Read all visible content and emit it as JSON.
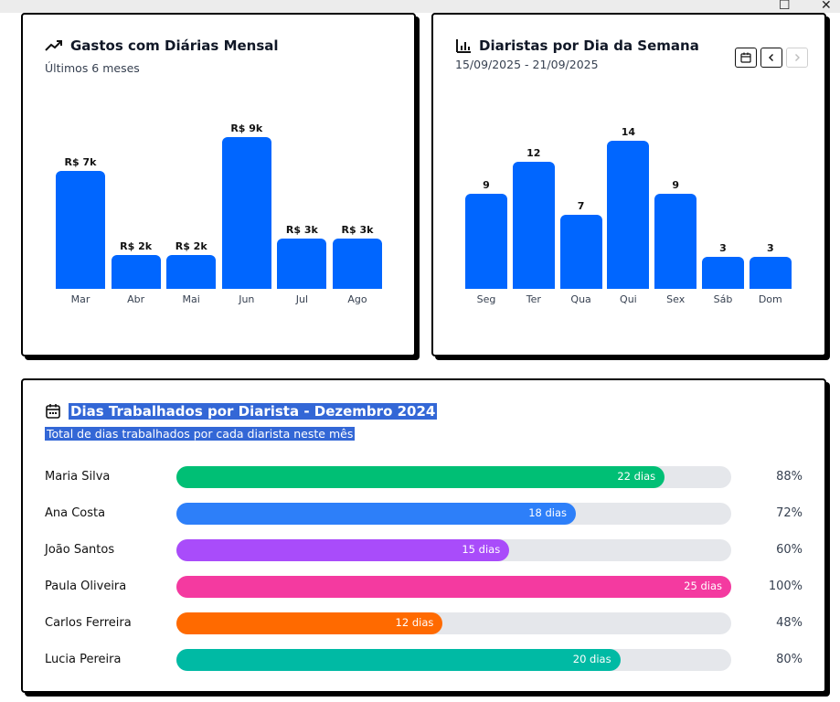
{
  "window": {
    "minimize_glyph": "☐",
    "close_glyph": "✕"
  },
  "monthly_card": {
    "title": "Gastos com Diárias Mensal",
    "subtitle": "Últimos 6 meses",
    "icon": "trending-up-icon"
  },
  "weekday_card": {
    "title": "Diaristas por Dia da Semana",
    "subtitle": "15/09/2025 - 21/09/2025",
    "icon": "bar-chart-icon"
  },
  "days_card": {
    "title": "Dias Trabalhados por Diarista - Dezembro 2024",
    "subtitle": "Total de dias trabalhados por cada diarista neste mês",
    "icon": "calendar-icon",
    "rows": [
      {
        "name": "Maria Silva",
        "days": 22,
        "days_label": "22 dias",
        "percent": 88,
        "percent_label": "88%",
        "color": "#00bf75"
      },
      {
        "name": "Ana Costa",
        "days": 18,
        "days_label": "18 dias",
        "percent": 72,
        "percent_label": "72%",
        "color": "#2d7ff9"
      },
      {
        "name": "João Santos",
        "days": 15,
        "days_label": "15 dias",
        "percent": 60,
        "percent_label": "60%",
        "color": "#a94cfa"
      },
      {
        "name": "Paula Oliveira",
        "days": 25,
        "days_label": "25 dias",
        "percent": 100,
        "percent_label": "100%",
        "color": "#f43aa0"
      },
      {
        "name": "Carlos Ferreira",
        "days": 12,
        "days_label": "12 dias",
        "percent": 48,
        "percent_label": "48%",
        "color": "#ff6a00"
      },
      {
        "name": "Lucia Pereira",
        "days": 20,
        "days_label": "20 dias",
        "percent": 80,
        "percent_label": "80%",
        "color": "#00baa4"
      }
    ]
  },
  "chart_data": [
    {
      "type": "bar",
      "categories": [
        "Mar",
        "Abr",
        "Mai",
        "Jun",
        "Jul",
        "Ago"
      ],
      "values": [
        7,
        2,
        2,
        9,
        3,
        3
      ],
      "value_labels": [
        "R$ 7k",
        "R$ 2k",
        "R$ 2k",
        "R$ 9k",
        "R$ 3k",
        "R$ 3k"
      ],
      "title": "Gastos com Diárias Mensal",
      "color": "#0066ff",
      "grid": false
    },
    {
      "type": "bar",
      "categories": [
        "Seg",
        "Ter",
        "Qua",
        "Qui",
        "Sex",
        "Sáb",
        "Dom"
      ],
      "values": [
        9,
        12,
        7,
        14,
        9,
        3,
        3
      ],
      "value_labels": [
        "9",
        "12",
        "7",
        "14",
        "9",
        "3",
        "3"
      ],
      "title": "Diaristas por Dia da Semana",
      "color": "#0066ff",
      "grid": false
    }
  ]
}
